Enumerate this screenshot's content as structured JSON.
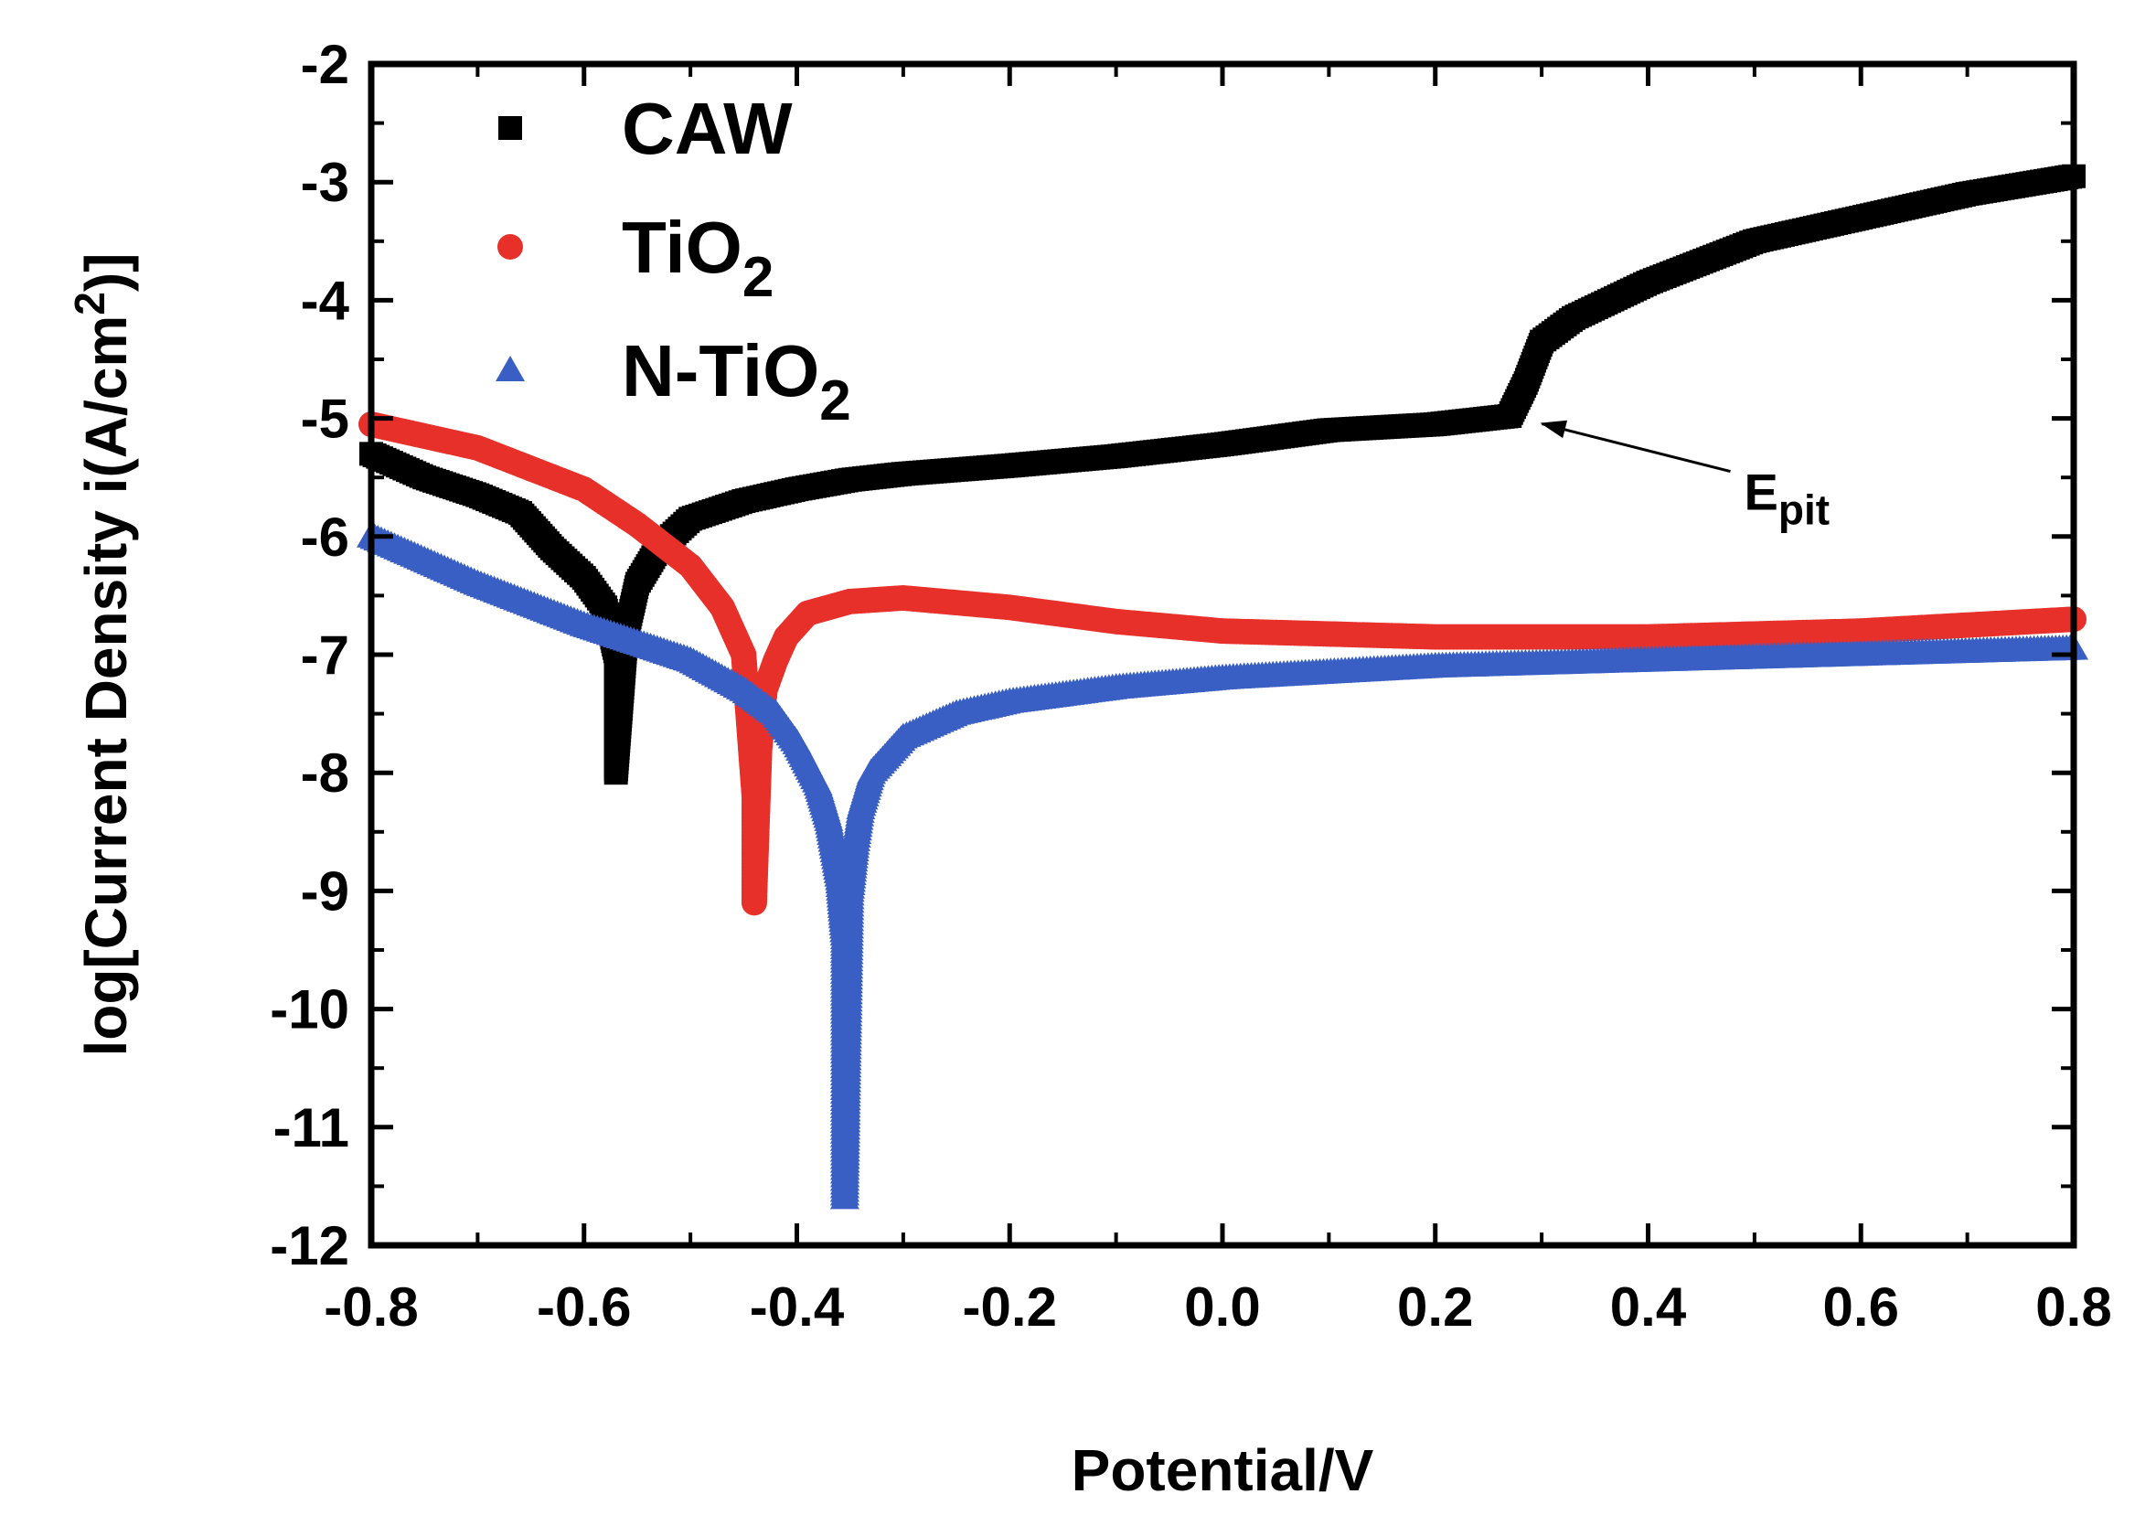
{
  "chart_data": {
    "type": "scatter",
    "title": "",
    "xlabel": "Potential/V",
    "ylabel": {
      "prefix": "log[Current Density i(A/cm",
      "sup": "2",
      "suffix": ")]"
    },
    "xlim": [
      -0.8,
      0.8
    ],
    "ylim": [
      -12,
      -2
    ],
    "xticks": [
      -0.8,
      -0.6,
      -0.4,
      -0.2,
      0.0,
      0.2,
      0.4,
      0.6,
      0.8
    ],
    "xtick_labels": [
      "-0.8",
      "-0.6",
      "-0.4",
      "-0.2",
      "0.0",
      "0.2",
      "0.4",
      "0.6",
      "0.8"
    ],
    "yticks": [
      -2,
      -3,
      -4,
      -5,
      -6,
      -7,
      -8,
      -9,
      -10,
      -11,
      -12
    ],
    "ytick_labels": [
      "-2",
      "-3",
      "-4",
      "-5",
      "-6",
      "-7",
      "-8",
      "-9",
      "-10",
      "-11",
      "-12"
    ],
    "legend_position": "top-left",
    "series": [
      {
        "name": "CAW",
        "label_main": "CAW",
        "label_sub": "",
        "marker": "square",
        "color": "#000000",
        "x": [
          -0.8,
          -0.75,
          -0.7,
          -0.66,
          -0.63,
          -0.6,
          -0.58,
          -0.57,
          -0.57,
          -0.565,
          -0.56,
          -0.55,
          -0.53,
          -0.5,
          -0.45,
          -0.4,
          -0.35,
          -0.3,
          -0.2,
          -0.1,
          0.0,
          0.1,
          0.2,
          0.27,
          0.285,
          0.3,
          0.33,
          0.4,
          0.5,
          0.6,
          0.7,
          0.8
        ],
        "y": [
          -5.3,
          -5.5,
          -5.65,
          -5.8,
          -6.1,
          -6.35,
          -6.6,
          -7.0,
          -8.0,
          -7.4,
          -6.8,
          -6.4,
          -6.1,
          -5.85,
          -5.7,
          -5.6,
          -5.52,
          -5.47,
          -5.4,
          -5.32,
          -5.22,
          -5.1,
          -5.05,
          -4.98,
          -4.7,
          -4.35,
          -4.15,
          -3.85,
          -3.5,
          -3.3,
          -3.1,
          -2.95
        ]
      },
      {
        "name": "TiO2",
        "label_main": "TiO",
        "label_sub": "2",
        "marker": "circle",
        "color": "#e8302a",
        "x": [
          -0.8,
          -0.7,
          -0.6,
          -0.55,
          -0.5,
          -0.47,
          -0.45,
          -0.445,
          -0.44,
          -0.44,
          -0.435,
          -0.43,
          -0.42,
          -0.41,
          -0.39,
          -0.35,
          -0.3,
          -0.2,
          -0.1,
          0.0,
          0.2,
          0.4,
          0.6,
          0.8
        ],
        "y": [
          -5.05,
          -5.25,
          -5.6,
          -5.9,
          -6.25,
          -6.6,
          -7.0,
          -7.6,
          -8.2,
          -9.1,
          -7.8,
          -7.3,
          -7.05,
          -6.85,
          -6.65,
          -6.55,
          -6.52,
          -6.6,
          -6.72,
          -6.8,
          -6.85,
          -6.85,
          -6.8,
          -6.7
        ]
      },
      {
        "name": "N-TiO2",
        "label_main": "N-TiO",
        "label_sub": "2",
        "marker": "triangle",
        "color": "#3a5fc4",
        "x": [
          -0.8,
          -0.7,
          -0.6,
          -0.55,
          -0.5,
          -0.45,
          -0.42,
          -0.4,
          -0.38,
          -0.37,
          -0.36,
          -0.355,
          -0.355,
          -0.355,
          -0.35,
          -0.345,
          -0.34,
          -0.33,
          -0.3,
          -0.25,
          -0.2,
          -0.1,
          0.0,
          0.2,
          0.4,
          0.6,
          0.8
        ],
        "y": [
          -6.0,
          -6.4,
          -6.75,
          -6.9,
          -7.05,
          -7.3,
          -7.5,
          -7.75,
          -8.1,
          -8.4,
          -8.9,
          -9.4,
          -9.6,
          -11.6,
          -9.0,
          -8.6,
          -8.3,
          -8.0,
          -7.7,
          -7.5,
          -7.4,
          -7.28,
          -7.2,
          -7.1,
          -7.05,
          -7.0,
          -6.95
        ]
      }
    ],
    "annotations": [
      {
        "label_main": "E",
        "label_sub": "pit",
        "target_x": 0.29,
        "target_y": -5.0
      }
    ]
  }
}
